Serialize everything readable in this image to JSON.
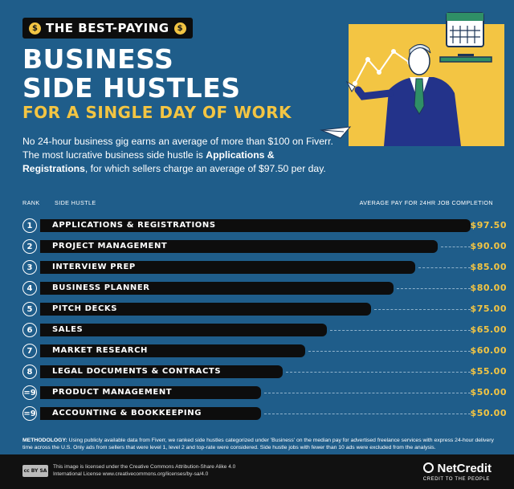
{
  "header": {
    "tagline": "THE BEST-PAYING",
    "coin_symbol": "$",
    "title_line1": "BUSINESS",
    "title_line2": "SIDE HUSTLES",
    "title_line3": "FOR A SINGLE DAY OF WORK",
    "intro_part1": "No 24-hour business gig earns an average of more than $100 on Fiverr. The most lucrative business side hustle is ",
    "intro_bold": "Applications & Registrations",
    "intro_part2": ", for which sellers charge an average of $97.50 per day."
  },
  "columns": {
    "rank": "RANK",
    "hustle": "SIDE HUSTLE",
    "pay": "AVERAGE PAY FOR 24HR JOB COMPLETION"
  },
  "chart_data": {
    "type": "bar",
    "orientation": "horizontal",
    "categories": [
      "APPLICATIONS & REGISTRATIONS",
      "PROJECT MANAGEMENT",
      "INTERVIEW PREP",
      "BUSINESS PLANNER",
      "PITCH DECKS",
      "SALES",
      "MARKET RESEARCH",
      "LEGAL DOCUMENTS & CONTRACTS",
      "PRODUCT MANAGEMENT",
      "ACCOUNTING & BOOKKEEPING"
    ],
    "ranks": [
      "1",
      "2",
      "3",
      "4",
      "5",
      "6",
      "7",
      "8",
      "=9",
      "=9"
    ],
    "values": [
      97.5,
      90,
      85,
      80,
      75,
      65,
      60,
      55,
      50,
      50
    ],
    "value_labels": [
      "$97.50",
      "$90.00",
      "$85.00",
      "$80.00",
      "$75.00",
      "$65.00",
      "$60.00",
      "$55.00",
      "$50.00",
      "$50.00"
    ],
    "xlim": [
      0,
      97.5
    ],
    "colors": {
      "bar": "#0d0d0d",
      "value": "#f3c543",
      "background": "#1f5d8a"
    }
  },
  "methodology": {
    "label": "METHODOLOGY:",
    "text": " Using publicly available data from Fiverr, we ranked side hustles categorized under 'Business' on the median pay for advertised freelance services with express 24-hour delivery time across the U.S. Only ads from sellers that were level 1, level 2 and top-rate were considered. Side hustle jobs with fewer than 10 ads were excluded from the analysis."
  },
  "footer": {
    "cc_badge": "cc BY SA",
    "license": "This image is licensed under the Creative Commons Attribution-Share Alike 4.0 International License www.creativecommons.org/licenses/by-sa/4.0",
    "brand": "NetCredit",
    "brand_tagline": "CREDIT TO THE PEOPLE"
  },
  "illustration_icons": [
    "presenter-icon",
    "calendar-icon",
    "line-graph-icon",
    "paper-airplane-icon"
  ]
}
